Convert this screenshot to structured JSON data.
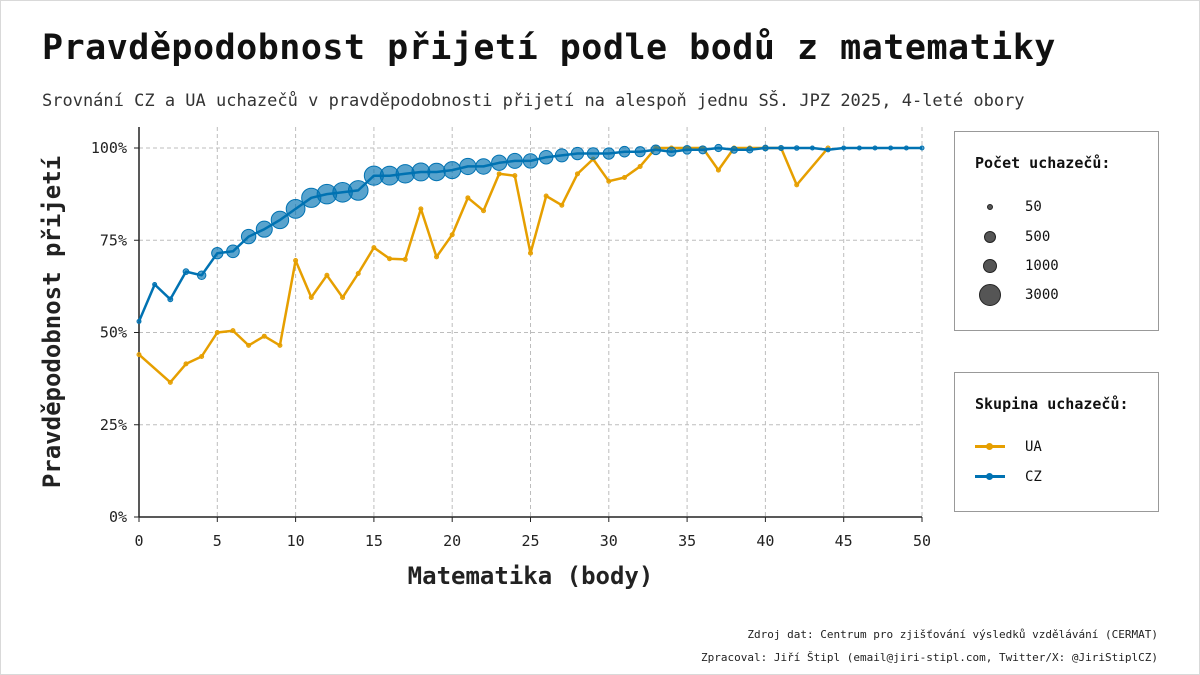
{
  "title": "Pravděpodobnost přijetí podle bodů z matematiky",
  "subtitle": "Srovnání CZ a UA uchazečů v pravděpodobnosti přijetí na alespoň jednu SŠ. JPZ 2025, 4-leté obory",
  "footer": {
    "source": "Zdroj dat: Centrum pro zjišťování výsledků vzdělávání (CERMAT)",
    "author": "Zpracoval: Jiří Štipl (email@jiri-stipl.com, Twitter/X: @JiriStiplCZ)"
  },
  "legend_size": {
    "title": "Počet uchazečů:",
    "items": [
      {
        "label": "50",
        "n": 50
      },
      {
        "label": "500",
        "n": 500
      },
      {
        "label": "1000",
        "n": 1000
      },
      {
        "label": "3000",
        "n": 3000
      }
    ]
  },
  "legend_group": {
    "title": "Skupina uchazečů:",
    "items": [
      {
        "label": "UA",
        "color": "#E69F00"
      },
      {
        "label": "CZ",
        "color": "#0072B2"
      }
    ]
  },
  "chart_data": {
    "type": "line",
    "xlabel": "Matematika (body)",
    "ylabel": "Pravděpodobnost přijetí",
    "xlim": [
      0,
      50
    ],
    "ylim": [
      0,
      1
    ],
    "xticks": [
      0,
      5,
      10,
      15,
      20,
      25,
      30,
      35,
      40,
      45,
      50
    ],
    "xtick_labels": [
      "0",
      "5",
      "10",
      "15",
      "20",
      "25",
      "30",
      "35",
      "40",
      "45",
      "50"
    ],
    "yticks": [
      0,
      0.25,
      0.5,
      0.75,
      1
    ],
    "ytick_labels": [
      "0%",
      "25%",
      "50%",
      "75%",
      "100%"
    ],
    "grid": true,
    "series": [
      {
        "name": "CZ",
        "color": "#0072B2",
        "points": [
          {
            "x": 0,
            "y": 0.53,
            "n": 40
          },
          {
            "x": 1,
            "y": 0.63,
            "n": 60
          },
          {
            "x": 2,
            "y": 0.59,
            "n": 150
          },
          {
            "x": 3,
            "y": 0.665,
            "n": 200
          },
          {
            "x": 4,
            "y": 0.655,
            "n": 450
          },
          {
            "x": 5,
            "y": 0.715,
            "n": 800
          },
          {
            "x": 6,
            "y": 0.72,
            "n": 1000
          },
          {
            "x": 7,
            "y": 0.76,
            "n": 1300
          },
          {
            "x": 8,
            "y": 0.78,
            "n": 1600
          },
          {
            "x": 9,
            "y": 0.805,
            "n": 1900
          },
          {
            "x": 10,
            "y": 0.835,
            "n": 2200
          },
          {
            "x": 11,
            "y": 0.865,
            "n": 2300
          },
          {
            "x": 12,
            "y": 0.875,
            "n": 2400
          },
          {
            "x": 13,
            "y": 0.88,
            "n": 2400
          },
          {
            "x": 14,
            "y": 0.885,
            "n": 2400
          },
          {
            "x": 15,
            "y": 0.925,
            "n": 2300
          },
          {
            "x": 16,
            "y": 0.925,
            "n": 2200
          },
          {
            "x": 17,
            "y": 0.93,
            "n": 2100
          },
          {
            "x": 18,
            "y": 0.935,
            "n": 2000
          },
          {
            "x": 19,
            "y": 0.935,
            "n": 1900
          },
          {
            "x": 20,
            "y": 0.94,
            "n": 1800
          },
          {
            "x": 21,
            "y": 0.95,
            "n": 1650
          },
          {
            "x": 22,
            "y": 0.95,
            "n": 1500
          },
          {
            "x": 23,
            "y": 0.96,
            "n": 1450
          },
          {
            "x": 24,
            "y": 0.965,
            "n": 1400
          },
          {
            "x": 25,
            "y": 0.965,
            "n": 1300
          },
          {
            "x": 26,
            "y": 0.975,
            "n": 1150
          },
          {
            "x": 27,
            "y": 0.98,
            "n": 1050
          },
          {
            "x": 28,
            "y": 0.985,
            "n": 950
          },
          {
            "x": 29,
            "y": 0.985,
            "n": 850
          },
          {
            "x": 30,
            "y": 0.985,
            "n": 800
          },
          {
            "x": 31,
            "y": 0.99,
            "n": 700
          },
          {
            "x": 32,
            "y": 0.99,
            "n": 650
          },
          {
            "x": 33,
            "y": 0.995,
            "n": 580
          },
          {
            "x": 34,
            "y": 0.99,
            "n": 520
          },
          {
            "x": 35,
            "y": 0.995,
            "n": 460
          },
          {
            "x": 36,
            "y": 0.995,
            "n": 400
          },
          {
            "x": 37,
            "y": 1.0,
            "n": 330
          },
          {
            "x": 38,
            "y": 0.995,
            "n": 280
          },
          {
            "x": 39,
            "y": 0.995,
            "n": 240
          },
          {
            "x": 40,
            "y": 1.0,
            "n": 200
          },
          {
            "x": 41,
            "y": 1.0,
            "n": 160
          },
          {
            "x": 42,
            "y": 1.0,
            "n": 130
          },
          {
            "x": 43,
            "y": 1.0,
            "n": 100
          },
          {
            "x": 44,
            "y": 0.995,
            "n": 80
          },
          {
            "x": 45,
            "y": 1.0,
            "n": 60
          },
          {
            "x": 46,
            "y": 1.0,
            "n": 45
          },
          {
            "x": 47,
            "y": 1.0,
            "n": 35
          },
          {
            "x": 48,
            "y": 1.0,
            "n": 25
          },
          {
            "x": 49,
            "y": 1.0,
            "n": 15
          },
          {
            "x": 50,
            "y": 1.0,
            "n": 10
          }
        ]
      },
      {
        "name": "UA",
        "color": "#E69F00",
        "points": [
          {
            "x": 0,
            "y": 0.44,
            "n": 15
          },
          {
            "x": 2,
            "y": 0.365,
            "n": 20
          },
          {
            "x": 3,
            "y": 0.415,
            "n": 20
          },
          {
            "x": 4,
            "y": 0.435,
            "n": 25
          },
          {
            "x": 5,
            "y": 0.5,
            "n": 30
          },
          {
            "x": 6,
            "y": 0.505,
            "n": 30
          },
          {
            "x": 7,
            "y": 0.465,
            "n": 30
          },
          {
            "x": 8,
            "y": 0.49,
            "n": 30
          },
          {
            "x": 9,
            "y": 0.465,
            "n": 30
          },
          {
            "x": 10,
            "y": 0.695,
            "n": 30
          },
          {
            "x": 11,
            "y": 0.595,
            "n": 30
          },
          {
            "x": 12,
            "y": 0.655,
            "n": 30
          },
          {
            "x": 13,
            "y": 0.595,
            "n": 30
          },
          {
            "x": 14,
            "y": 0.66,
            "n": 30
          },
          {
            "x": 15,
            "y": 0.73,
            "n": 30
          },
          {
            "x": 16,
            "y": 0.7,
            "n": 25
          },
          {
            "x": 17,
            "y": 0.698,
            "n": 25
          },
          {
            "x": 18,
            "y": 0.835,
            "n": 25
          },
          {
            "x": 19,
            "y": 0.705,
            "n": 25
          },
          {
            "x": 20,
            "y": 0.765,
            "n": 25
          },
          {
            "x": 21,
            "y": 0.865,
            "n": 25
          },
          {
            "x": 22,
            "y": 0.83,
            "n": 25
          },
          {
            "x": 23,
            "y": 0.93,
            "n": 20
          },
          {
            "x": 24,
            "y": 0.925,
            "n": 20
          },
          {
            "x": 25,
            "y": 0.715,
            "n": 20
          },
          {
            "x": 26,
            "y": 0.87,
            "n": 20
          },
          {
            "x": 27,
            "y": 0.845,
            "n": 20
          },
          {
            "x": 28,
            "y": 0.93,
            "n": 20
          },
          {
            "x": 29,
            "y": 0.97,
            "n": 15
          },
          {
            "x": 30,
            "y": 0.91,
            "n": 15
          },
          {
            "x": 31,
            "y": 0.92,
            "n": 15
          },
          {
            "x": 32,
            "y": 0.95,
            "n": 15
          },
          {
            "x": 33,
            "y": 1.0,
            "n": 12
          },
          {
            "x": 34,
            "y": 1.0,
            "n": 12
          },
          {
            "x": 35,
            "y": 1.0,
            "n": 10
          },
          {
            "x": 36,
            "y": 1.0,
            "n": 10
          },
          {
            "x": 37,
            "y": 0.94,
            "n": 10
          },
          {
            "x": 38,
            "y": 1.0,
            "n": 10
          },
          {
            "x": 39,
            "y": 1.0,
            "n": 8
          },
          {
            "x": 40,
            "y": 1.0,
            "n": 8
          },
          {
            "x": 41,
            "y": 1.0,
            "n": 8
          },
          {
            "x": 42,
            "y": 0.9,
            "n": 8
          },
          {
            "x": 44,
            "y": 1.0,
            "n": 6
          }
        ]
      }
    ]
  }
}
